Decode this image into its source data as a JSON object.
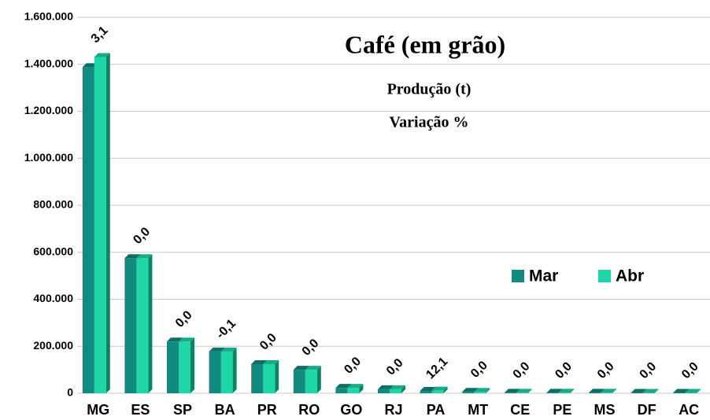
{
  "chart_data": {
    "type": "bar",
    "title": "Café (em grão)",
    "subtitle": "Produção (t)",
    "annotation": "Variação %",
    "categories": [
      "MG",
      "ES",
      "SP",
      "BA",
      "PR",
      "RO",
      "GO",
      "RJ",
      "PA",
      "MT",
      "CE",
      "PE",
      "MS",
      "DF",
      "AC"
    ],
    "series": [
      {
        "name": "Mar",
        "color": "#138a80",
        "values": [
          1388000,
          575000,
          220000,
          178000,
          124000,
          100000,
          23000,
          17000,
          10000,
          6000,
          2000,
          2000,
          2000,
          1500,
          1500
        ]
      },
      {
        "name": "Abr",
        "color": "#1fd6a6",
        "values": [
          1431000,
          575000,
          220000,
          177800,
          124000,
          100000,
          23000,
          17000,
          11210,
          6000,
          2000,
          2000,
          2000,
          1500,
          1500
        ]
      }
    ],
    "variation_labels": [
      "3,1",
      "0,0",
      "0,0",
      "-0,1",
      "0,0",
      "0,0",
      "0,0",
      "0,0",
      "12,1",
      "0,0",
      "0,0",
      "0,0",
      "0,0",
      "0,0",
      "0,0"
    ],
    "ylim": [
      0,
      1600000
    ],
    "yticks": [
      0,
      {
        "value": 200000,
        "label": "200.000"
      },
      {
        "value": 400000,
        "label": "400.000"
      },
      {
        "value": 600000,
        "label": "600.000"
      },
      {
        "value": 800000,
        "label": "800.000"
      },
      {
        "value": 1000000,
        "label": "1.000.000"
      },
      {
        "value": 1200000,
        "label": "1.200.000"
      },
      {
        "value": 1400000,
        "label": "1.400.000"
      },
      {
        "value": 1600000,
        "label": "1.600.000"
      }
    ],
    "grid": true,
    "legend": "right"
  }
}
